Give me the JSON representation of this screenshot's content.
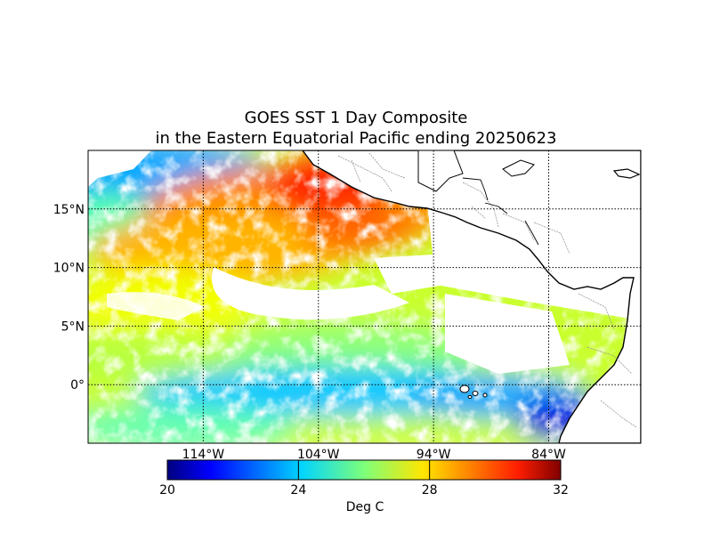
{
  "title_line1": "GOES SST 1 Day Composite",
  "title_line2": "in the Eastern Equatorial Pacific ending 20250623",
  "lat_labels": [
    {
      "label": "15°N",
      "lat": 15
    },
    {
      "label": "10°N",
      "lat": 10
    },
    {
      "label": "5°N",
      "lat": 5
    },
    {
      "label": "0°",
      "lat": 0
    }
  ],
  "lon_labels": [
    {
      "label": "114°W",
      "lon": -114
    },
    {
      "label": "104°W",
      "lon": -104
    },
    {
      "label": "94°W",
      "lon": -94
    },
    {
      "label": "84°W",
      "lon": -84
    }
  ],
  "extent": {
    "lon_min": -124,
    "lon_max": -76,
    "lat_min": -5,
    "lat_max": 20
  },
  "colorbar": {
    "min": 20,
    "max": 32,
    "ticks": [
      "20",
      "24",
      "28",
      "32"
    ],
    "tick_values": [
      20,
      24,
      28,
      32
    ],
    "label": "Deg C",
    "colormap": "jet"
  },
  "sst_regions": [
    {
      "name": "warm-band-north",
      "temp": 30.5
    },
    {
      "name": "equatorial-cold-tongue",
      "temp": 24.5
    },
    {
      "name": "galapagos-cold",
      "temp": 22.0
    },
    {
      "name": "west-north-cool",
      "temp": 25.5
    },
    {
      "name": "west-mid-yellow",
      "temp": 28.3
    }
  ]
}
